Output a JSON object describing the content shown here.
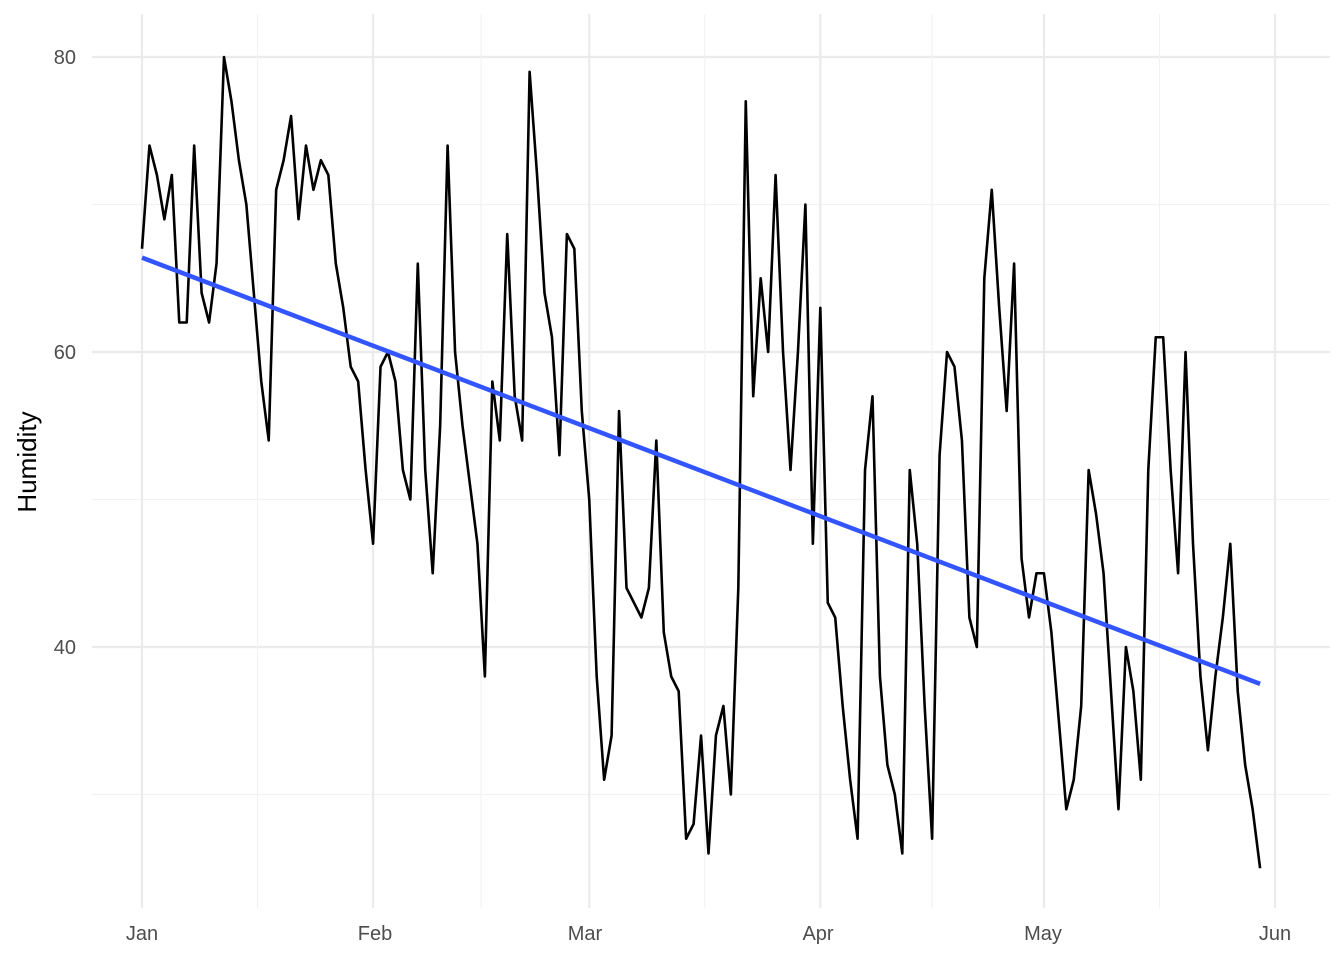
{
  "chart_data": {
    "type": "line",
    "title": "",
    "xlabel": "",
    "ylabel": "Humidity",
    "x_tick_labels": [
      "Jan",
      "Feb",
      "Mar",
      "Apr",
      "May",
      "Jun"
    ],
    "y_ticks": [
      40,
      60,
      80
    ],
    "ylim": [
      24.5,
      82.8
    ],
    "xlim": [
      "2024-01-01",
      "2024-06-01"
    ],
    "grid": true,
    "colors": {
      "line": "#000000",
      "trend": "#3355ff",
      "grid": "#ebebeb"
    },
    "series": [
      {
        "values": [
          67,
          74,
          72,
          69,
          72,
          62,
          62,
          74,
          64,
          62,
          66,
          80,
          77,
          73,
          70,
          64,
          58,
          54,
          71,
          73,
          76,
          69,
          74,
          71,
          73,
          72,
          66,
          63,
          59,
          58,
          52,
          47,
          59,
          60,
          58,
          52,
          50,
          66,
          52,
          45,
          55,
          74,
          60,
          55,
          51,
          47,
          38,
          58,
          54,
          68,
          57,
          54,
          79,
          72,
          64,
          61,
          53,
          68,
          67,
          56,
          50,
          38,
          31,
          34,
          56,
          44,
          43,
          42,
          44,
          54,
          41,
          38,
          37,
          27,
          28,
          34,
          26,
          34,
          36,
          30,
          44,
          77,
          57,
          65,
          60,
          72,
          60,
          52,
          60,
          70,
          47,
          63,
          43,
          42,
          36,
          31,
          27,
          52,
          57,
          38,
          32,
          30,
          26,
          52,
          47,
          36,
          27,
          53,
          60,
          59,
          54,
          42,
          40,
          65,
          71,
          63,
          56,
          66,
          46,
          42,
          45,
          45,
          41,
          35,
          29,
          31,
          36,
          52,
          49,
          45,
          37,
          29,
          40,
          37,
          31,
          52,
          61,
          61,
          52,
          45,
          60,
          47,
          38,
          33,
          38,
          42,
          47,
          37,
          32,
          29,
          25
        ]
      },
      {
        "name_hidden": true,
        "values": [
          66.4,
          37.5
        ]
      }
    ]
  }
}
